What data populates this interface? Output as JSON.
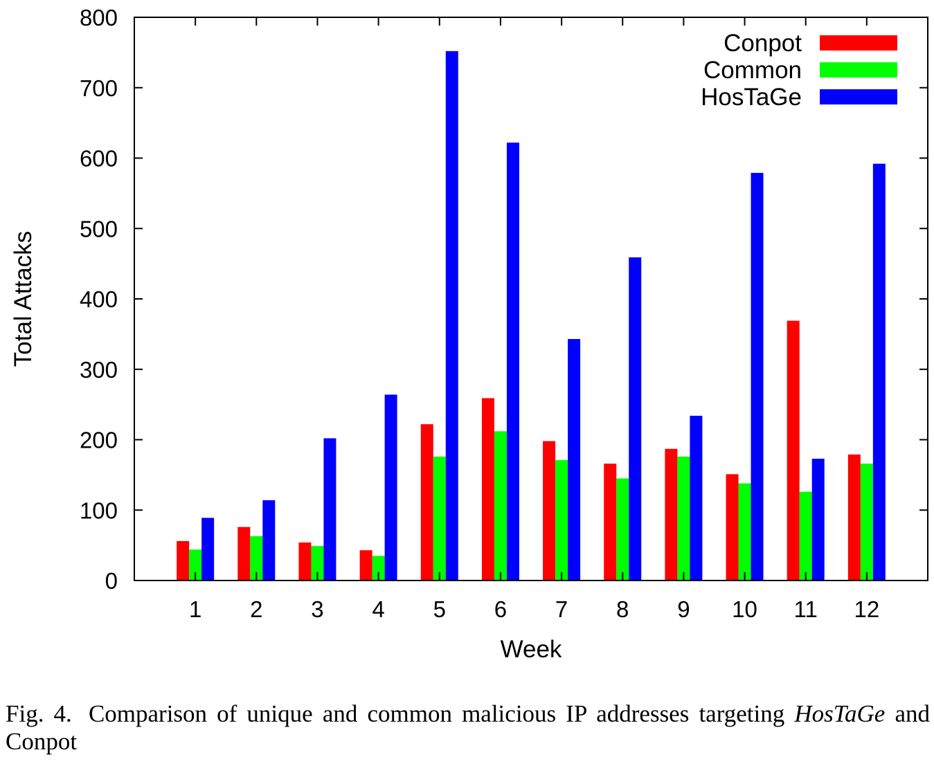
{
  "chart_data": {
    "type": "bar",
    "xlabel": "Week",
    "ylabel": "Total Attacks",
    "ylim": [
      0,
      800
    ],
    "yticks": [
      0,
      100,
      200,
      300,
      400,
      500,
      600,
      700,
      800
    ],
    "categories": [
      "1",
      "2",
      "3",
      "4",
      "5",
      "6",
      "7",
      "8",
      "9",
      "10",
      "11",
      "12"
    ],
    "legend_position": "top-right",
    "grid": false,
    "series": [
      {
        "name": "Conpot",
        "color": "#ff0000",
        "values": [
          56,
          76,
          54,
          43,
          222,
          259,
          198,
          166,
          187,
          151,
          369,
          179
        ]
      },
      {
        "name": "Common",
        "color": "#00ff00",
        "values": [
          44,
          63,
          49,
          35,
          176,
          212,
          171,
          145,
          176,
          138,
          126,
          166
        ]
      },
      {
        "name": "HosTaGe",
        "color": "#0000ff",
        "values": [
          89,
          114,
          202,
          264,
          752,
          622,
          343,
          459,
          234,
          579,
          173,
          592
        ]
      }
    ]
  },
  "caption": {
    "label": "Fig. 4.",
    "text_before": "Comparison of unique and common malicious IP addresses targeting",
    "italic": "HosTaGe",
    "text_after": "and Conpot"
  }
}
